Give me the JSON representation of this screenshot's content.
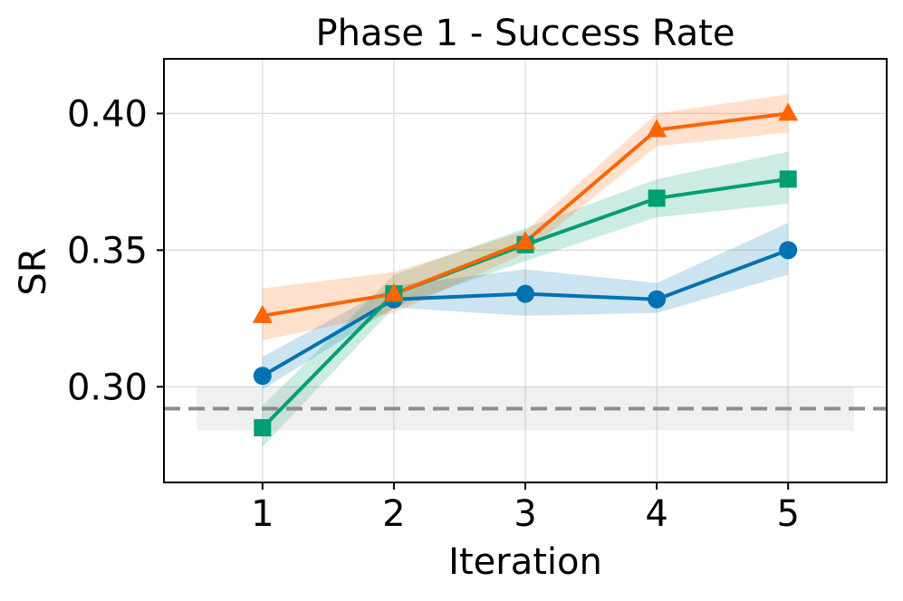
{
  "chart_data": {
    "type": "line",
    "title": "Phase 1 - Success Rate",
    "xlabel": "Iteration",
    "ylabel": "SR",
    "x": [
      1,
      2,
      3,
      4,
      5
    ],
    "xticks": [
      "1",
      "2",
      "3",
      "4",
      "5"
    ],
    "yticks": [
      "0.30",
      "0.35",
      "0.40"
    ],
    "xlim": [
      0.25,
      5.75
    ],
    "ylim": [
      0.265,
      0.42
    ],
    "grid": true,
    "legend": "none",
    "series": [
      {
        "name": "blue-circle",
        "color": "#0072b2",
        "marker": "circle",
        "values": [
          0.304,
          0.332,
          0.334,
          0.332,
          0.35
        ],
        "lower": [
          0.299,
          0.329,
          0.326,
          0.327,
          0.341
        ],
        "upper": [
          0.311,
          0.337,
          0.343,
          0.338,
          0.36
        ]
      },
      {
        "name": "green-square",
        "color": "#009e73",
        "marker": "square",
        "values": [
          0.285,
          0.334,
          0.352,
          0.369,
          0.376
        ],
        "lower": [
          0.278,
          0.329,
          0.346,
          0.362,
          0.367
        ],
        "upper": [
          0.293,
          0.341,
          0.358,
          0.376,
          0.386
        ]
      },
      {
        "name": "orange-triangle",
        "color": "#ff6400",
        "marker": "triangle",
        "values": [
          0.326,
          0.334,
          0.353,
          0.394,
          0.4
        ],
        "lower": [
          0.317,
          0.327,
          0.349,
          0.388,
          0.393
        ],
        "upper": [
          0.336,
          0.342,
          0.357,
          0.4,
          0.407
        ]
      }
    ],
    "baseline": {
      "value": 0.292,
      "lower": 0.284,
      "upper": 0.3,
      "x_range": [
        0.5,
        5.5
      ],
      "color": "#8c8c8c"
    }
  }
}
